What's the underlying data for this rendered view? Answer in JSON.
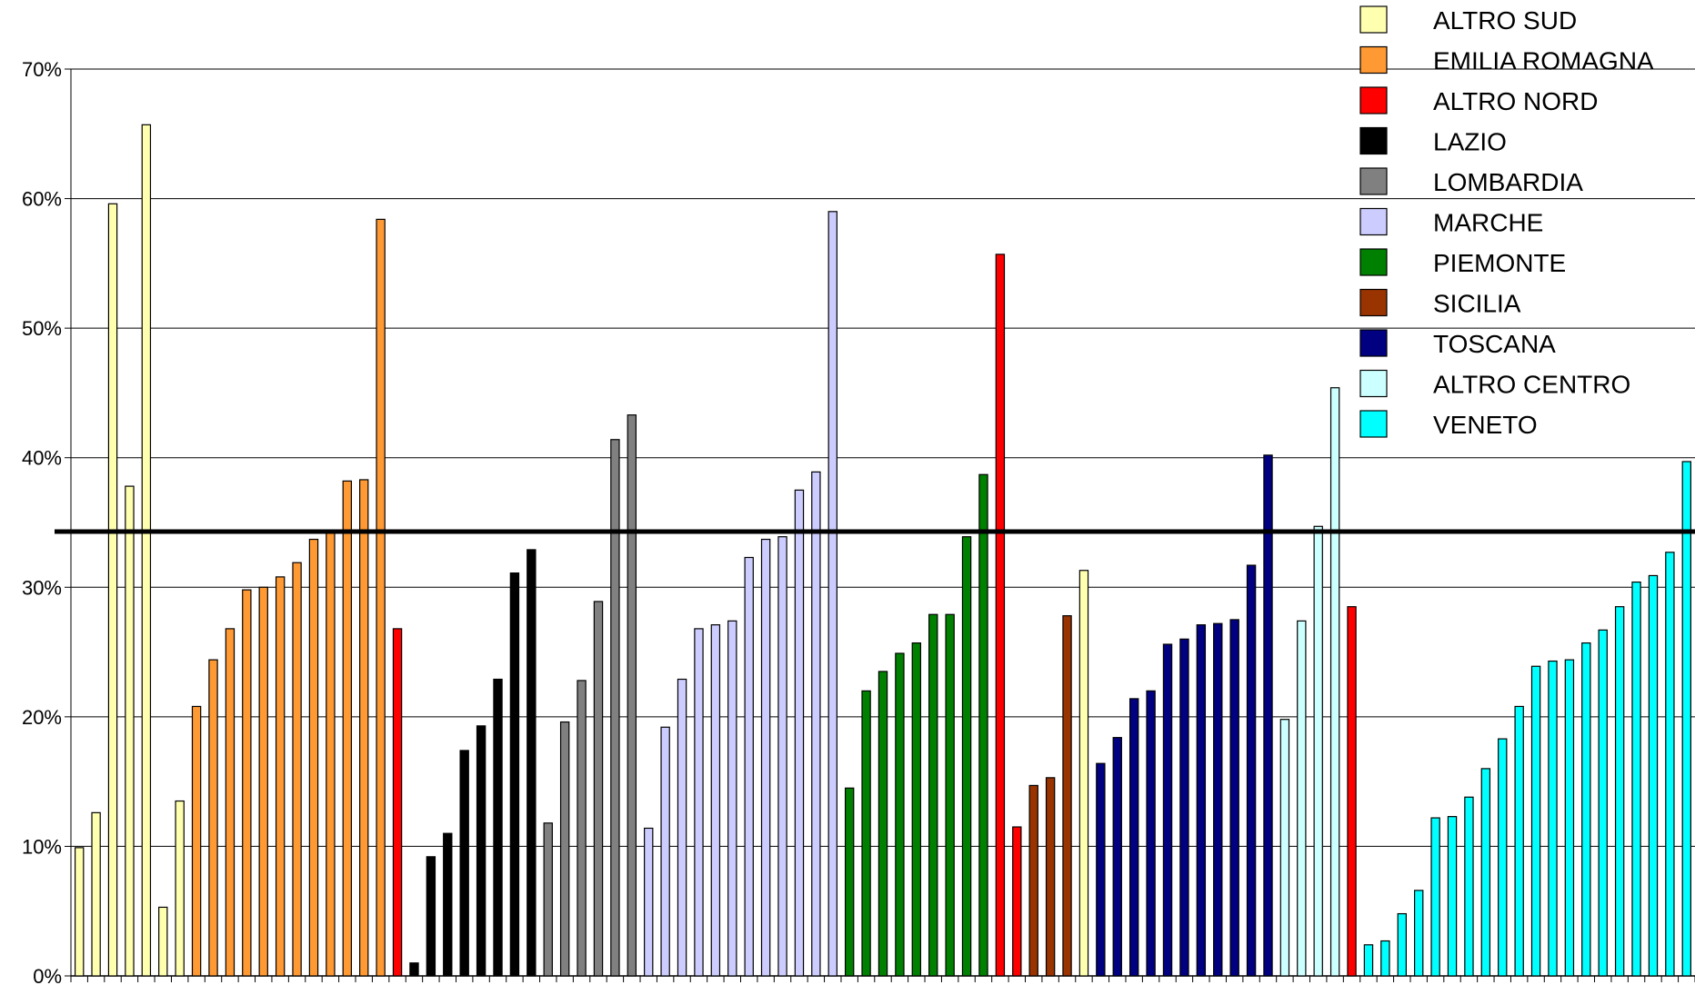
{
  "chart_data": {
    "type": "bar",
    "ylim": [
      0,
      0.7
    ],
    "y_ticks": [
      0,
      0.1,
      0.2,
      0.3,
      0.4,
      0.5,
      0.6,
      0.7
    ],
    "y_tick_labels": [
      "0%",
      "10%",
      "20%",
      "30%",
      "40%",
      "50%",
      "60%",
      "70%"
    ],
    "grid": true,
    "legend_position": "top-right",
    "reference_line": 0.343,
    "regions": [
      {
        "key": "sud",
        "name": "ALTRO SUD",
        "color": "#FFFFB0"
      },
      {
        "key": "emilia",
        "name": "EMILIA ROMAGNA",
        "color": "#FF9933"
      },
      {
        "key": "nord",
        "name": "ALTRO NORD",
        "color": "#FF0000"
      },
      {
        "key": "lazio",
        "name": "LAZIO",
        "color": "#000000"
      },
      {
        "key": "lomb",
        "name": "LOMBARDIA",
        "color": "#808080"
      },
      {
        "key": "marche",
        "name": "MARCHE",
        "color": "#CCCCFF"
      },
      {
        "key": "piem",
        "name": "PIEMONTE",
        "color": "#008000"
      },
      {
        "key": "sicilia",
        "name": "SICILIA",
        "color": "#993300"
      },
      {
        "key": "toscana",
        "name": "TOSCANA",
        "color": "#000080"
      },
      {
        "key": "centro",
        "name": "ALTRO CENTRO",
        "color": "#CCFFFF"
      },
      {
        "key": "veneto",
        "name": "VENETO",
        "color": "#00FFFF"
      }
    ],
    "bars": [
      {
        "r": "sud",
        "v": 0.099
      },
      {
        "r": "sud",
        "v": 0.126
      },
      {
        "r": "sud",
        "v": 0.596
      },
      {
        "r": "sud",
        "v": 0.378
      },
      {
        "r": "sud",
        "v": 0.657
      },
      {
        "r": "sud",
        "v": 0.053
      },
      {
        "r": "sud",
        "v": 0.135
      },
      {
        "r": "emilia",
        "v": 0.208
      },
      {
        "r": "emilia",
        "v": 0.244
      },
      {
        "r": "emilia",
        "v": 0.268
      },
      {
        "r": "emilia",
        "v": 0.298
      },
      {
        "r": "emilia",
        "v": 0.3
      },
      {
        "r": "emilia",
        "v": 0.308
      },
      {
        "r": "emilia",
        "v": 0.319
      },
      {
        "r": "emilia",
        "v": 0.337
      },
      {
        "r": "emilia",
        "v": 0.342
      },
      {
        "r": "emilia",
        "v": 0.382
      },
      {
        "r": "emilia",
        "v": 0.383
      },
      {
        "r": "emilia",
        "v": 0.584
      },
      {
        "r": "nord",
        "v": 0.268
      },
      {
        "r": "lazio",
        "v": 0.01
      },
      {
        "r": "lazio",
        "v": 0.092
      },
      {
        "r": "lazio",
        "v": 0.11
      },
      {
        "r": "lazio",
        "v": 0.174
      },
      {
        "r": "lazio",
        "v": 0.193
      },
      {
        "r": "lazio",
        "v": 0.229
      },
      {
        "r": "lazio",
        "v": 0.311
      },
      {
        "r": "lazio",
        "v": 0.329
      },
      {
        "r": "lomb",
        "v": 0.118
      },
      {
        "r": "lomb",
        "v": 0.196
      },
      {
        "r": "lomb",
        "v": 0.228
      },
      {
        "r": "lomb",
        "v": 0.289
      },
      {
        "r": "lomb",
        "v": 0.414
      },
      {
        "r": "lomb",
        "v": 0.433
      },
      {
        "r": "marche",
        "v": 0.114
      },
      {
        "r": "marche",
        "v": 0.192
      },
      {
        "r": "marche",
        "v": 0.229
      },
      {
        "r": "marche",
        "v": 0.268
      },
      {
        "r": "marche",
        "v": 0.271
      },
      {
        "r": "marche",
        "v": 0.274
      },
      {
        "r": "marche",
        "v": 0.323
      },
      {
        "r": "marche",
        "v": 0.337
      },
      {
        "r": "marche",
        "v": 0.339
      },
      {
        "r": "marche",
        "v": 0.375
      },
      {
        "r": "marche",
        "v": 0.389
      },
      {
        "r": "marche",
        "v": 0.59
      },
      {
        "r": "piem",
        "v": 0.145
      },
      {
        "r": "piem",
        "v": 0.22
      },
      {
        "r": "piem",
        "v": 0.235
      },
      {
        "r": "piem",
        "v": 0.249
      },
      {
        "r": "piem",
        "v": 0.257
      },
      {
        "r": "piem",
        "v": 0.279
      },
      {
        "r": "piem",
        "v": 0.279
      },
      {
        "r": "piem",
        "v": 0.339
      },
      {
        "r": "piem",
        "v": 0.387
      },
      {
        "r": "nord",
        "v": 0.557
      },
      {
        "r": "nord",
        "v": 0.115
      },
      {
        "r": "sicilia",
        "v": 0.147
      },
      {
        "r": "sicilia",
        "v": 0.153
      },
      {
        "r": "sicilia",
        "v": 0.278
      },
      {
        "r": "sud",
        "v": 0.313
      },
      {
        "r": "toscana",
        "v": 0.164
      },
      {
        "r": "toscana",
        "v": 0.184
      },
      {
        "r": "toscana",
        "v": 0.214
      },
      {
        "r": "toscana",
        "v": 0.22
      },
      {
        "r": "toscana",
        "v": 0.256
      },
      {
        "r": "toscana",
        "v": 0.26
      },
      {
        "r": "toscana",
        "v": 0.271
      },
      {
        "r": "toscana",
        "v": 0.272
      },
      {
        "r": "toscana",
        "v": 0.275
      },
      {
        "r": "toscana",
        "v": 0.317
      },
      {
        "r": "toscana",
        "v": 0.402
      },
      {
        "r": "centro",
        "v": 0.198
      },
      {
        "r": "centro",
        "v": 0.274
      },
      {
        "r": "centro",
        "v": 0.347
      },
      {
        "r": "centro",
        "v": 0.454
      },
      {
        "r": "nord",
        "v": 0.285
      },
      {
        "r": "veneto",
        "v": 0.024
      },
      {
        "r": "veneto",
        "v": 0.027
      },
      {
        "r": "veneto",
        "v": 0.048
      },
      {
        "r": "veneto",
        "v": 0.066
      },
      {
        "r": "veneto",
        "v": 0.122
      },
      {
        "r": "veneto",
        "v": 0.123
      },
      {
        "r": "veneto",
        "v": 0.138
      },
      {
        "r": "veneto",
        "v": 0.16
      },
      {
        "r": "veneto",
        "v": 0.183
      },
      {
        "r": "veneto",
        "v": 0.208
      },
      {
        "r": "veneto",
        "v": 0.239
      },
      {
        "r": "veneto",
        "v": 0.243
      },
      {
        "r": "veneto",
        "v": 0.244
      },
      {
        "r": "veneto",
        "v": 0.257
      },
      {
        "r": "veneto",
        "v": 0.267
      },
      {
        "r": "veneto",
        "v": 0.285
      },
      {
        "r": "veneto",
        "v": 0.304
      },
      {
        "r": "veneto",
        "v": 0.309
      },
      {
        "r": "veneto",
        "v": 0.327
      },
      {
        "r": "veneto",
        "v": 0.397
      }
    ]
  }
}
